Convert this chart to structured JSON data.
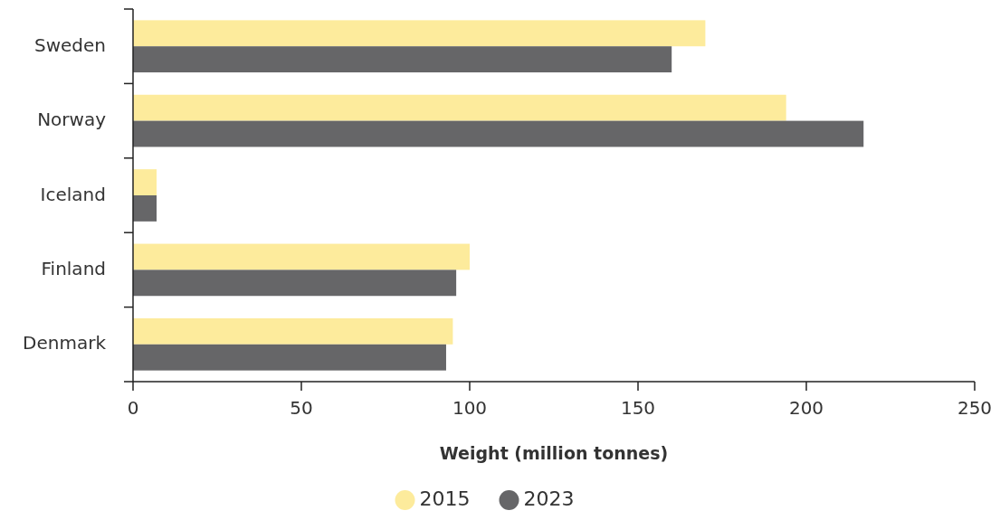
{
  "chart_data": {
    "type": "bar",
    "orientation": "horizontal",
    "xlabel": "Weight (million tonnes)",
    "categories": [
      "Sweden",
      "Norway",
      "Iceland",
      "Finland",
      "Denmark"
    ],
    "series": [
      {
        "name": "2015",
        "color": "#fdeb9c",
        "values": [
          170,
          194,
          7,
          100,
          95
        ]
      },
      {
        "name": "2023",
        "color": "#666668",
        "values": [
          160,
          217,
          7,
          96,
          93
        ]
      }
    ],
    "xlim": [
      0,
      250
    ],
    "xticks": [
      0,
      50,
      100,
      150,
      200,
      250
    ],
    "legend": "bottom",
    "grid": false
  }
}
